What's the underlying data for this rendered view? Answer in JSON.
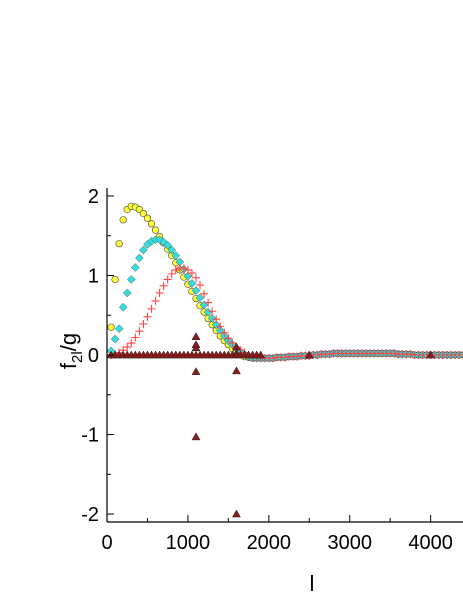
{
  "chart_data": {
    "type": "scatter",
    "xlabel": "l",
    "ylabel_main": "f",
    "ylabel_sub": "2l",
    "ylabel_tail": "/g",
    "xlim": [
      0,
      4400
    ],
    "ylim": [
      -2.1,
      2.1
    ],
    "x_ticks": [
      0,
      1000,
      2000,
      3000,
      4000
    ],
    "x_tick_labels": [
      "0",
      "1000",
      "2000",
      "3000",
      "4000"
    ],
    "y_ticks": [
      -2,
      -1,
      0,
      1,
      2
    ],
    "y_tick_labels": [
      "-2",
      "-1",
      "0",
      "1",
      "2"
    ],
    "grid": false,
    "series": [
      {
        "marker": "circle",
        "color": "#ffff33",
        "x": [
          50,
          100,
          150,
          200,
          250,
          300,
          350,
          400,
          450,
          500,
          550,
          600,
          650,
          700,
          750,
          800,
          850,
          900,
          950,
          1000,
          1050,
          1100,
          1150,
          1200,
          1250,
          1300,
          1350,
          1400,
          1450,
          1500,
          1550,
          1600,
          1650,
          1700,
          1750,
          1800,
          1850,
          1900,
          1950,
          2000,
          2050,
          2100,
          2150,
          2200,
          2250,
          2300,
          2350,
          2400,
          2450,
          2500,
          2550,
          2600,
          2650,
          2700,
          2750,
          2800,
          2850,
          2900,
          2950,
          3000,
          3050,
          3100,
          3150,
          3200,
          3250,
          3300,
          3350,
          3400,
          3450,
          3500,
          3550,
          3600,
          3650,
          3700,
          3750,
          3800,
          3850,
          3900,
          3950,
          4000,
          4050,
          4100,
          4150,
          4200,
          4250,
          4300,
          4350,
          4400
        ],
        "y": [
          0.35,
          0.95,
          1.4,
          1.7,
          1.83,
          1.87,
          1.86,
          1.83,
          1.78,
          1.72,
          1.65,
          1.57,
          1.49,
          1.41,
          1.33,
          1.25,
          1.16,
          1.07,
          0.98,
          0.89,
          0.8,
          0.71,
          0.62,
          0.54,
          0.46,
          0.38,
          0.31,
          0.24,
          0.18,
          0.13,
          0.08,
          0.04,
          0.01,
          -0.02,
          -0.03,
          -0.04,
          -0.04,
          -0.04,
          -0.04,
          -0.04,
          -0.04,
          -0.03,
          -0.03,
          -0.03,
          -0.02,
          -0.02,
          -0.02,
          -0.01,
          -0.01,
          -0.01,
          0.0,
          0.0,
          0.01,
          0.01,
          0.01,
          0.02,
          0.02,
          0.02,
          0.02,
          0.02,
          0.02,
          0.02,
          0.02,
          0.02,
          0.02,
          0.02,
          0.02,
          0.02,
          0.02,
          0.02,
          0.02,
          0.01,
          0.01,
          0.01,
          0.01,
          0.0,
          0.0,
          0.0,
          0.0,
          0.0,
          0.0,
          0.0,
          0.0,
          0.0,
          0.0,
          0.0,
          0.0,
          0.0
        ]
      },
      {
        "marker": "diamond",
        "color": "#33dddd",
        "x": [
          50,
          100,
          150,
          200,
          250,
          300,
          350,
          400,
          450,
          500,
          550,
          600,
          650,
          700,
          750,
          800,
          850,
          900,
          950,
          1000,
          1050,
          1100,
          1150,
          1200,
          1250,
          1300,
          1350,
          1400,
          1450,
          1500,
          1550,
          1600,
          1650,
          1700,
          1750,
          1800,
          1850,
          1900,
          1950,
          2000,
          2050,
          2100,
          2150,
          2200,
          2250,
          2300,
          2350,
          2400,
          2450,
          2500,
          2550,
          2600,
          2650,
          2700,
          2750,
          2800,
          2850,
          2900,
          2950,
          3000,
          3050,
          3100,
          3150,
          3200,
          3250,
          3300,
          3350,
          3400,
          3450,
          3500,
          3550,
          3600,
          3650,
          3700,
          3750,
          3800,
          3850,
          3900,
          3950,
          4000,
          4050,
          4100,
          4150,
          4200,
          4250,
          4300,
          4350,
          4400
        ],
        "y": [
          0.05,
          0.2,
          0.33,
          0.6,
          0.78,
          0.95,
          1.1,
          1.22,
          1.32,
          1.39,
          1.43,
          1.45,
          1.45,
          1.42,
          1.38,
          1.32,
          1.25,
          1.17,
          1.08,
          0.99,
          0.9,
          0.81,
          0.72,
          0.63,
          0.54,
          0.46,
          0.38,
          0.31,
          0.24,
          0.18,
          0.13,
          0.08,
          0.04,
          0.01,
          -0.02,
          -0.03,
          -0.04,
          -0.04,
          -0.04,
          -0.04,
          -0.04,
          -0.03,
          -0.03,
          -0.03,
          -0.02,
          -0.02,
          -0.02,
          -0.01,
          -0.01,
          -0.01,
          0.0,
          0.0,
          0.01,
          0.01,
          0.01,
          0.02,
          0.02,
          0.02,
          0.02,
          0.02,
          0.02,
          0.02,
          0.02,
          0.02,
          0.02,
          0.02,
          0.02,
          0.02,
          0.02,
          0.02,
          0.02,
          0.01,
          0.01,
          0.01,
          0.01,
          0.0,
          0.0,
          0.0,
          0.0,
          0.0,
          0.0,
          0.0,
          0.0,
          0.0,
          0.0,
          0.0,
          0.0,
          0.0
        ]
      },
      {
        "marker": "plus",
        "color": "#ff4444",
        "x": [
          50,
          100,
          150,
          200,
          250,
          300,
          350,
          400,
          450,
          500,
          550,
          600,
          650,
          700,
          750,
          800,
          850,
          900,
          950,
          1000,
          1050,
          1100,
          1150,
          1200,
          1250,
          1300,
          1350,
          1400,
          1450,
          1500,
          1550,
          1600,
          1650,
          1700,
          1750,
          1800,
          1850,
          1900,
          1950,
          2000,
          2050,
          2100,
          2150,
          2200,
          2250,
          2300,
          2350,
          2400,
          2450,
          2500,
          2550,
          2600,
          2650,
          2700,
          2750,
          2800,
          2850,
          2900,
          2950,
          3000,
          3050,
          3100,
          3150,
          3200,
          3250,
          3300,
          3350,
          3400,
          3450,
          3500,
          3550,
          3600,
          3650,
          3700,
          3750,
          3800,
          3850,
          3900,
          3950,
          4000,
          4050,
          4100,
          4150,
          4200,
          4250,
          4300,
          4350,
          4400
        ],
        "y": [
          0.0,
          0.01,
          0.03,
          0.06,
          0.1,
          0.15,
          0.22,
          0.3,
          0.39,
          0.48,
          0.58,
          0.68,
          0.78,
          0.87,
          0.95,
          1.02,
          1.07,
          1.09,
          1.09,
          1.07,
          1.03,
          0.97,
          0.88,
          0.77,
          0.66,
          0.55,
          0.45,
          0.36,
          0.28,
          0.21,
          0.15,
          0.1,
          0.06,
          0.03,
          0.0,
          -0.02,
          -0.03,
          -0.04,
          -0.04,
          -0.04,
          -0.04,
          -0.03,
          -0.03,
          -0.03,
          -0.02,
          -0.02,
          -0.02,
          -0.01,
          -0.01,
          -0.01,
          0.0,
          0.0,
          0.01,
          0.01,
          0.01,
          0.02,
          0.02,
          0.02,
          0.02,
          0.02,
          0.02,
          0.02,
          0.02,
          0.02,
          0.02,
          0.02,
          0.02,
          0.02,
          0.02,
          0.02,
          0.02,
          0.01,
          0.01,
          0.01,
          0.01,
          0.0,
          0.0,
          0.0,
          0.0,
          0.0,
          0.0,
          0.0,
          0.0,
          0.0,
          0.0,
          0.0,
          0.0,
          0.0
        ]
      },
      {
        "marker": "triangle",
        "color": "#8b1a1a",
        "x": [
          50,
          100,
          150,
          200,
          250,
          300,
          350,
          400,
          450,
          500,
          550,
          600,
          650,
          700,
          750,
          800,
          850,
          900,
          950,
          1000,
          1050,
          1100,
          1100,
          1100,
          1100,
          1100,
          1100,
          1150,
          1200,
          1250,
          1300,
          1350,
          1400,
          1450,
          1500,
          1550,
          1600,
          1600,
          1600,
          1600,
          1600,
          1650,
          1700,
          1750,
          1800,
          1850,
          1900,
          2500,
          4000
        ],
        "y": [
          0.0,
          0.0,
          0.0,
          0.0,
          0.0,
          0.0,
          0.0,
          0.0,
          0.0,
          0.0,
          0.0,
          0.0,
          0.0,
          0.0,
          0.0,
          0.0,
          0.0,
          0.0,
          0.0,
          0.0,
          0.0,
          -1.03,
          -0.21,
          0.09,
          0.13,
          0.23,
          0.0,
          0.0,
          0.0,
          0.0,
          0.0,
          0.0,
          0.0,
          0.0,
          0.0,
          0.0,
          -2.0,
          -0.2,
          0.02,
          0.1,
          0.0,
          0.0,
          0.0,
          0.0,
          0.0,
          0.0,
          0.0,
          0.0,
          0.0
        ]
      }
    ]
  }
}
